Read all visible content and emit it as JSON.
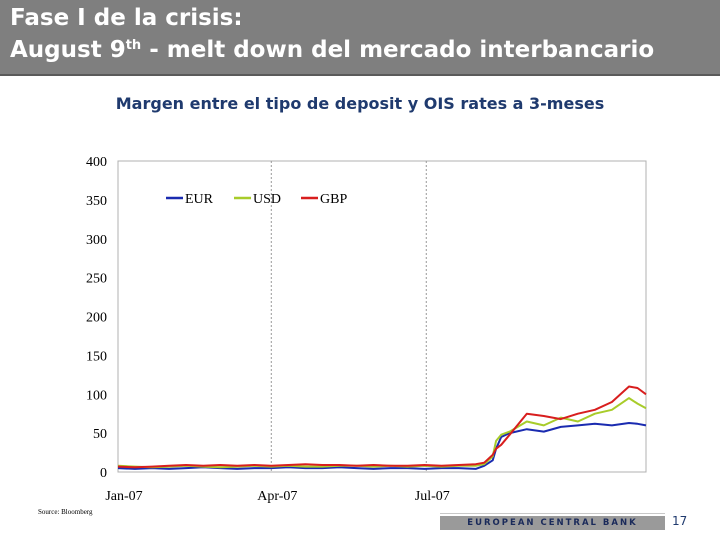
{
  "slide": {
    "title_line1": "Fase I de la crisis:",
    "title_line2_prefix": "August 9",
    "title_line2_sup": "th",
    "title_line2_suffix": " - melt down del mercado interbancario",
    "source": "Source: Bloomberg",
    "footer": "EUROPEAN CENTRAL BANK",
    "page_number": "17"
  },
  "colors": {
    "header": "#7f7f7f",
    "EUR": "#1a2bb0",
    "USD": "#a8cc2a",
    "GBP": "#d81e1e"
  },
  "chart_data": {
    "type": "line",
    "title": "Margen entre el tipo de deposit y OIS rates a 3-meses",
    "xlabel": "",
    "ylabel": "",
    "ylim": [
      0,
      400
    ],
    "yticks": [
      0,
      50,
      100,
      150,
      200,
      250,
      300,
      350,
      400
    ],
    "xlim": [
      0,
      310
    ],
    "xticks": [
      {
        "label": "Jan-07",
        "x": 0
      },
      {
        "label": "Apr-07",
        "x": 90
      },
      {
        "label": "Jul-07",
        "x": 181
      }
    ],
    "gridlines": "vertical-dashed",
    "legend": {
      "placement": "top-left",
      "entries": [
        "EUR",
        "USD",
        "GBP"
      ]
    },
    "series": [
      {
        "name": "EUR",
        "color_key": "EUR",
        "x": [
          0,
          10,
          20,
          30,
          40,
          50,
          60,
          70,
          80,
          90,
          100,
          110,
          120,
          130,
          140,
          150,
          160,
          170,
          180,
          190,
          200,
          210,
          215,
          220,
          222,
          225,
          230,
          240,
          250,
          260,
          270,
          280,
          290,
          300,
          305,
          310
        ],
        "y": [
          5,
          4,
          5,
          4,
          5,
          6,
          5,
          4,
          5,
          5,
          6,
          5,
          5,
          6,
          5,
          4,
          5,
          5,
          4,
          5,
          5,
          4,
          8,
          15,
          30,
          45,
          50,
          55,
          52,
          58,
          60,
          62,
          60,
          63,
          62,
          60
        ]
      },
      {
        "name": "USD",
        "color_key": "USD",
        "x": [
          0,
          10,
          20,
          30,
          40,
          50,
          60,
          70,
          80,
          90,
          100,
          110,
          120,
          130,
          140,
          150,
          160,
          170,
          180,
          190,
          200,
          210,
          215,
          220,
          222,
          225,
          230,
          240,
          250,
          260,
          270,
          280,
          290,
          300,
          305,
          310
        ],
        "y": [
          8,
          7,
          6,
          7,
          8,
          7,
          6,
          7,
          8,
          7,
          8,
          7,
          7,
          8,
          8,
          7,
          8,
          7,
          8,
          7,
          8,
          8,
          10,
          20,
          40,
          48,
          52,
          65,
          60,
          70,
          65,
          75,
          80,
          95,
          88,
          82
        ]
      },
      {
        "name": "GBP",
        "color_key": "GBP",
        "x": [
          0,
          10,
          20,
          30,
          40,
          50,
          60,
          70,
          80,
          90,
          100,
          110,
          120,
          130,
          140,
          150,
          160,
          170,
          180,
          190,
          200,
          210,
          215,
          220,
          222,
          225,
          230,
          240,
          250,
          260,
          270,
          280,
          290,
          300,
          305,
          310
        ],
        "y": [
          7,
          6,
          7,
          8,
          9,
          8,
          9,
          8,
          9,
          8,
          9,
          10,
          9,
          9,
          8,
          9,
          8,
          8,
          9,
          8,
          9,
          10,
          12,
          22,
          30,
          35,
          48,
          75,
          72,
          68,
          75,
          80,
          90,
          110,
          108,
          100
        ]
      }
    ]
  }
}
